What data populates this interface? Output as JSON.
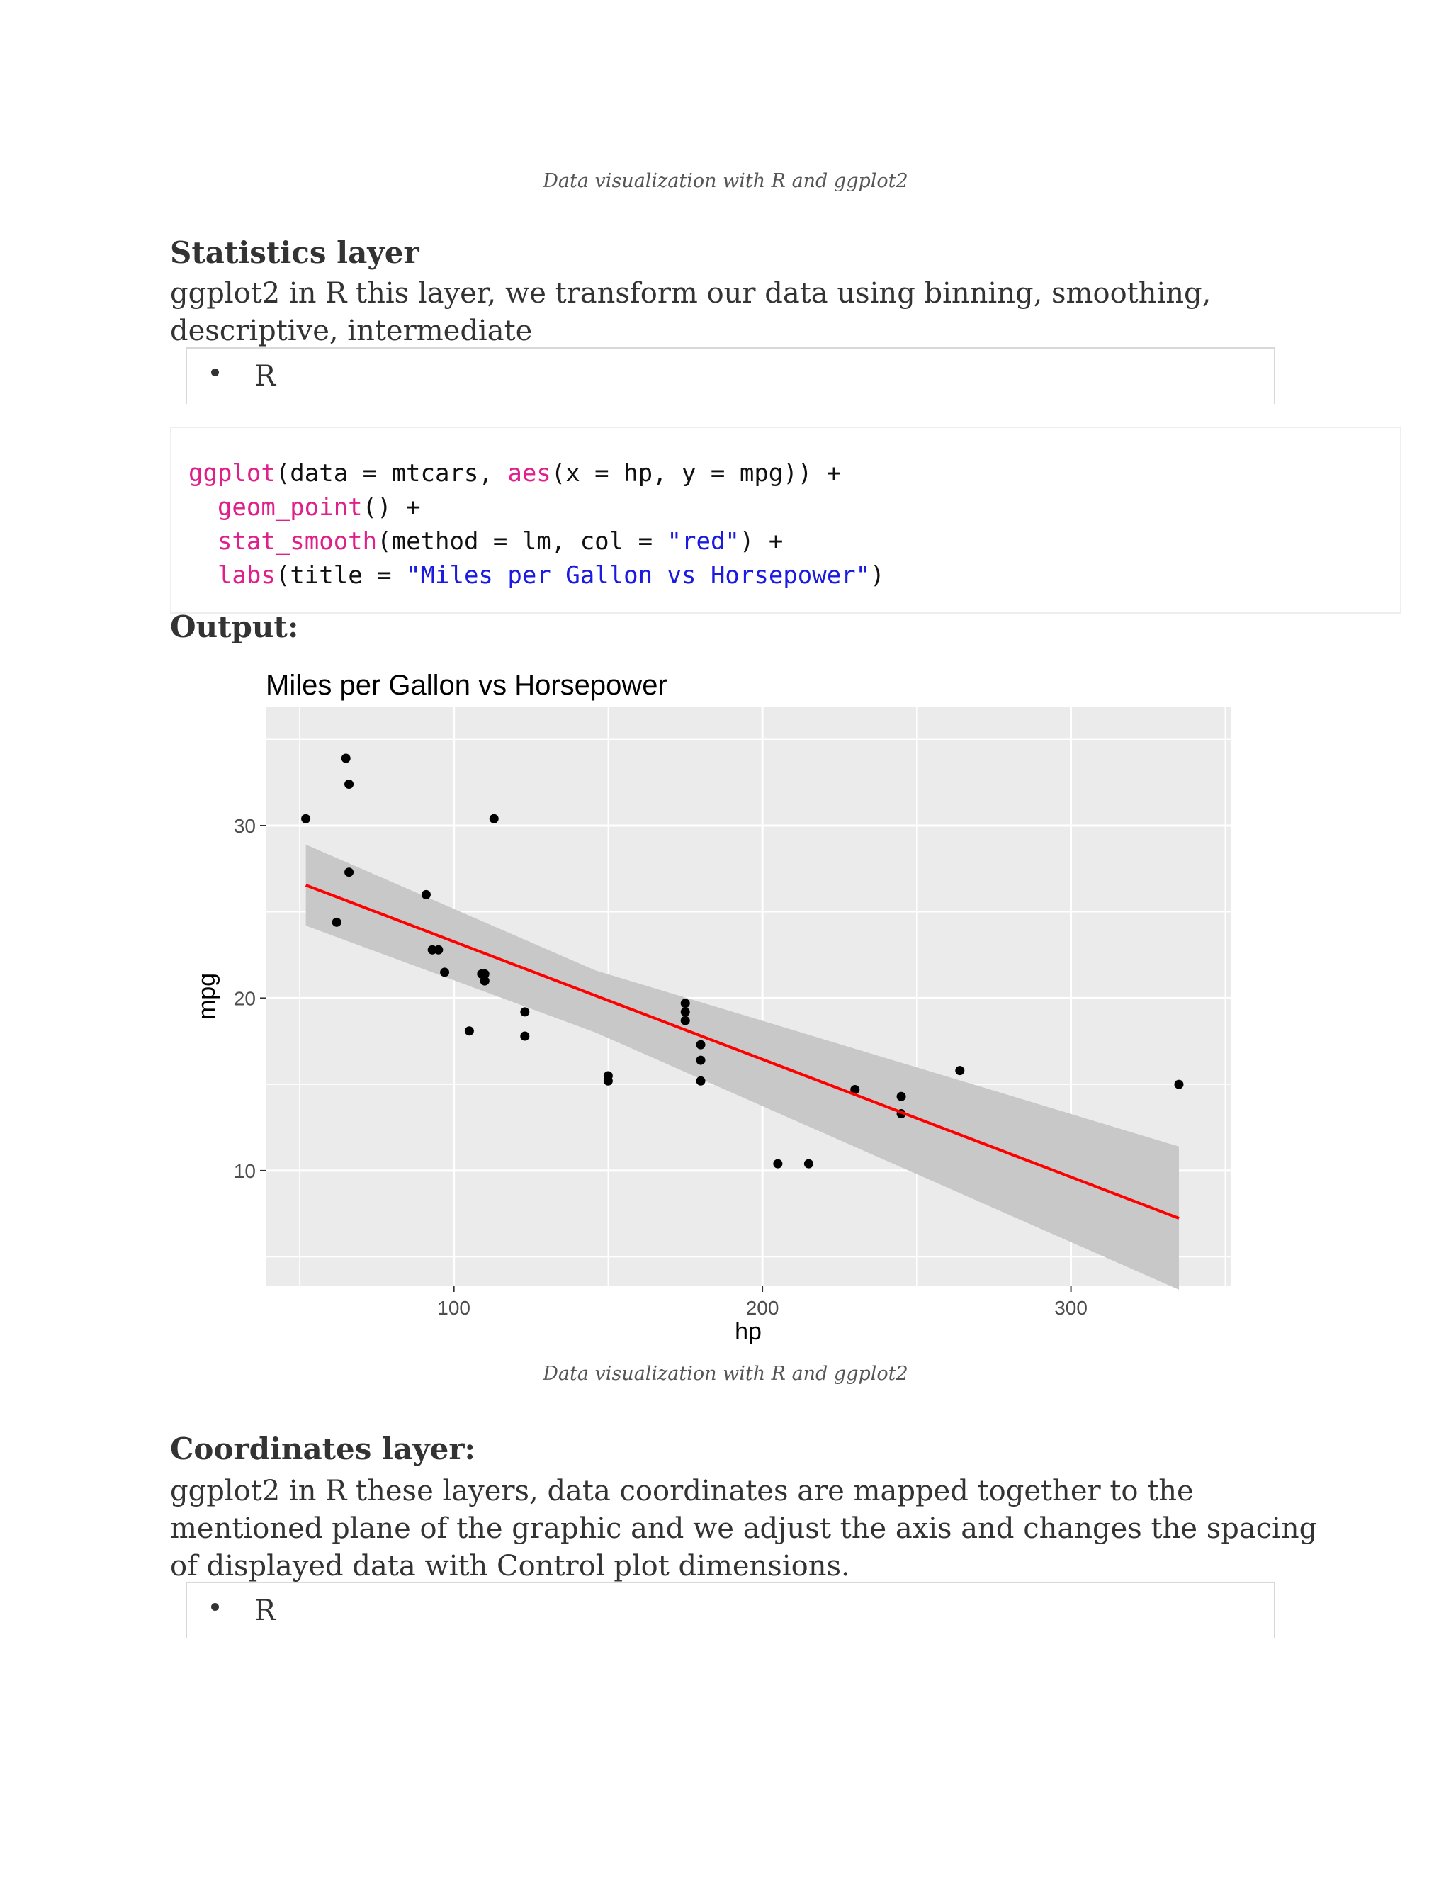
{
  "doc": {
    "caption_top": "Data visualization with R and ggplot2",
    "statistics": {
      "heading": "Statistics layer",
      "text": "ggplot2 in R this layer, we transform our data using binning, smoothing, descriptive, intermediate",
      "lang": "R"
    },
    "code": {
      "l1_fn": "ggplot",
      "l1_a": "(data = mtcars, ",
      "l1_fn2": "aes",
      "l1_b": "(x = hp, y = mpg)) +",
      "l2_fn": "geom_point",
      "l2_a": "() +",
      "l3_fn": "stat_smooth",
      "l3_a": "(method = lm, col = ",
      "l3_str": "\"red\"",
      "l3_b": ") +",
      "l4_fn": "labs",
      "l4_a": "(title = ",
      "l4_str": "\"Miles per Gallon vs Horsepower\"",
      "l4_b": ")"
    },
    "output_heading": "Output:",
    "caption_bottom": "Data visualization with R and ggplot2",
    "coordinates": {
      "heading": "Coordinates layer:",
      "text": "ggplot2 in R these layers, data coordinates are mapped together to the mentioned plane of the graphic and we adjust the axis and changes the spacing of displayed data with Control plot dimensions.",
      "lang": "R"
    }
  },
  "chart_data": {
    "type": "scatter",
    "title": "Miles per Gallon vs Horsepower",
    "xlabel": "hp",
    "ylabel": "mpg",
    "xlim": [
      39,
      352
    ],
    "ylim": [
      3.3,
      36.9
    ],
    "xticks": [
      100,
      200,
      300
    ],
    "yticks": [
      10,
      20,
      30
    ],
    "xtick_labels": [
      "100",
      "200",
      "300"
    ],
    "ytick_labels": [
      "10",
      "20",
      "30"
    ],
    "grid": true,
    "points": [
      [
        52,
        30.4
      ],
      [
        62,
        24.4
      ],
      [
        65,
        33.9
      ],
      [
        66,
        32.4
      ],
      [
        66,
        27.3
      ],
      [
        91,
        26.0
      ],
      [
        93,
        22.8
      ],
      [
        95,
        22.8
      ],
      [
        97,
        21.5
      ],
      [
        105,
        18.1
      ],
      [
        109,
        21.4
      ],
      [
        110,
        21.0
      ],
      [
        110,
        21.0
      ],
      [
        110,
        21.4
      ],
      [
        113,
        30.4
      ],
      [
        123,
        17.8
      ],
      [
        123,
        19.2
      ],
      [
        150,
        15.5
      ],
      [
        150,
        15.2
      ],
      [
        175,
        18.7
      ],
      [
        175,
        19.2
      ],
      [
        175,
        19.7
      ],
      [
        180,
        16.4
      ],
      [
        180,
        17.3
      ],
      [
        180,
        15.2
      ],
      [
        205,
        10.4
      ],
      [
        215,
        10.4
      ],
      [
        230,
        14.7
      ],
      [
        245,
        14.3
      ],
      [
        245,
        13.3
      ],
      [
        264,
        15.8
      ],
      [
        335,
        15.0
      ]
    ],
    "smooth": {
      "method": "lm",
      "color": "#ff0000",
      "intercept": 30.099,
      "slope": -0.06823,
      "x_range": [
        52,
        335
      ],
      "band": [
        [
          52,
          24.2,
          28.9
        ],
        [
          146,
          18.0,
          21.6
        ],
        [
          335,
          3.1,
          11.4
        ]
      ]
    },
    "colors": {
      "panel": "#ebebeb",
      "grid": "#ffffff",
      "point": "#000000",
      "band": "#c8c8c8"
    }
  }
}
